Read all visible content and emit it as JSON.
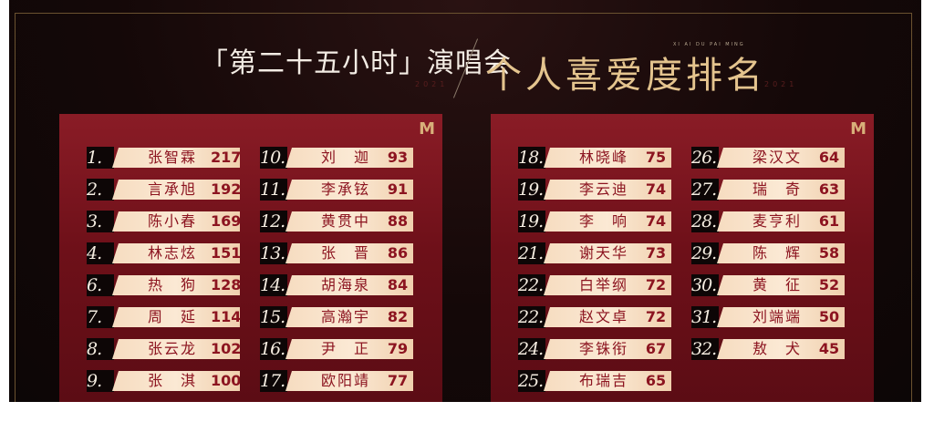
{
  "header": {
    "title_left": "「第二十五小时」演唱会",
    "title_right": "个人喜爱度排名",
    "pinyin": "XI AI DU PAI MING",
    "year": "2021",
    "logo": "M"
  },
  "colors": {
    "panel": "#7a1420",
    "bar": "#f8e2c8",
    "text": "#8c1420",
    "title_gold": "#e4c48e"
  },
  "panels": [
    {
      "columns": [
        [
          {
            "rank": "1.",
            "name": "张智霖",
            "score": "217"
          },
          {
            "rank": "2.",
            "name": "言承旭",
            "score": "192"
          },
          {
            "rank": "3.",
            "name": "陈小春",
            "score": "169"
          },
          {
            "rank": "4.",
            "name": "林志炫",
            "score": "151"
          },
          {
            "rank": "6.",
            "name": "热　狗",
            "score": "128"
          },
          {
            "rank": "7.",
            "name": "周　延",
            "score": "114"
          },
          {
            "rank": "8.",
            "name": "张云龙",
            "score": "102"
          },
          {
            "rank": "9.",
            "name": "张　淇",
            "score": "100"
          }
        ],
        [
          {
            "rank": "10.",
            "name": "刘　迦",
            "score": "93"
          },
          {
            "rank": "11.",
            "name": "李承铉",
            "score": "91"
          },
          {
            "rank": "12.",
            "name": "黄贯中",
            "score": "88"
          },
          {
            "rank": "13.",
            "name": "张　晋",
            "score": "86"
          },
          {
            "rank": "14.",
            "name": "胡海泉",
            "score": "84"
          },
          {
            "rank": "15.",
            "name": "高瀚宇",
            "score": "82"
          },
          {
            "rank": "16.",
            "name": "尹　正",
            "score": "79"
          },
          {
            "rank": "17.",
            "name": "欧阳靖",
            "score": "77"
          }
        ]
      ]
    },
    {
      "columns": [
        [
          {
            "rank": "18.",
            "name": "林晓峰",
            "score": "75"
          },
          {
            "rank": "19.",
            "name": "李云迪",
            "score": "74"
          },
          {
            "rank": "19.",
            "name": "李　响",
            "score": "74"
          },
          {
            "rank": "21.",
            "name": "谢天华",
            "score": "73"
          },
          {
            "rank": "22.",
            "name": "白举纲",
            "score": "72"
          },
          {
            "rank": "22.",
            "name": "赵文卓",
            "score": "72"
          },
          {
            "rank": "24.",
            "name": "李铢衔",
            "score": "67"
          },
          {
            "rank": "25.",
            "name": "布瑞吉",
            "score": "65"
          }
        ],
        [
          {
            "rank": "26.",
            "name": "梁汉文",
            "score": "64"
          },
          {
            "rank": "27.",
            "name": "瑞　奇",
            "score": "63"
          },
          {
            "rank": "28.",
            "name": "麦亨利",
            "score": "61"
          },
          {
            "rank": "29.",
            "name": "陈　辉",
            "score": "58"
          },
          {
            "rank": "30.",
            "name": "黄　征",
            "score": "52"
          },
          {
            "rank": "31.",
            "name": "刘端端",
            "score": "50"
          },
          {
            "rank": "32.",
            "name": "敖　犬",
            "score": "45"
          }
        ]
      ]
    }
  ]
}
